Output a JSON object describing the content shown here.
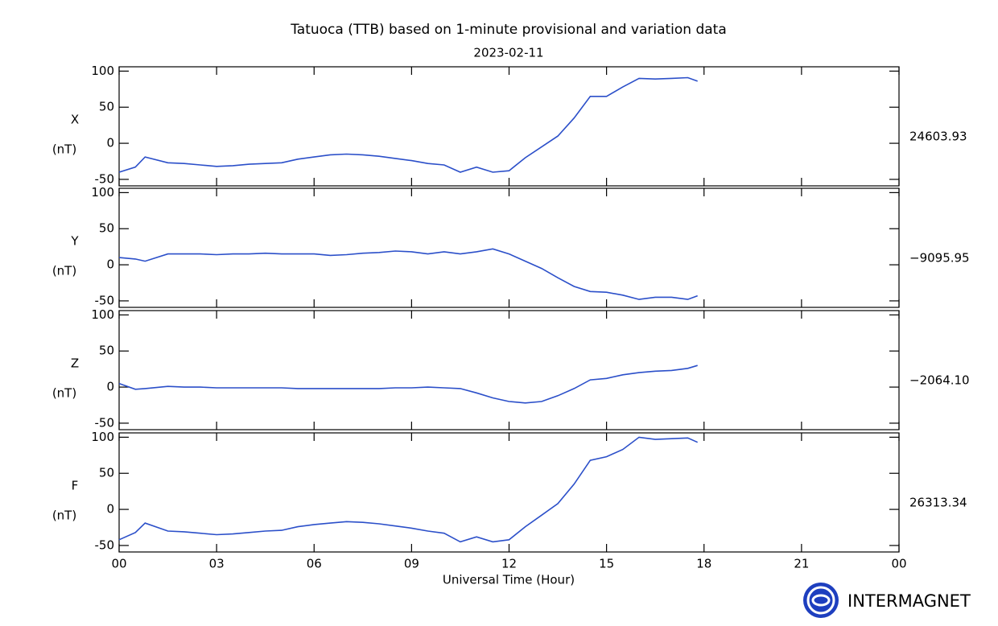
{
  "title": "Tatuoca (TTB) based on 1-minute provisional and variation data",
  "subtitle": "2023-02-11",
  "x_label": "Universal Time (Hour)",
  "logo": "INTERMAGNET",
  "chart_data": [
    {
      "type": "line",
      "ylabel": "X",
      "unit": "(nT)",
      "baseline": "24603.93",
      "color": "#2b4fc9",
      "xlim": [
        0,
        24
      ],
      "ylim": [
        -59,
        106
      ],
      "xticks": [
        {
          "value": 0,
          "label": "00"
        },
        {
          "value": 3,
          "label": "03"
        },
        {
          "value": 6,
          "label": "06"
        },
        {
          "value": 9,
          "label": "09"
        },
        12,
        15,
        18,
        21,
        {
          "value": 24,
          "label": "00"
        }
      ],
      "yticks": [
        -50,
        0,
        50,
        100
      ],
      "x": [
        0,
        0.5,
        0.8,
        1.5,
        2,
        2.5,
        3,
        3.5,
        4,
        4.5,
        5,
        5.5,
        6,
        6.5,
        7,
        7.5,
        8,
        8.5,
        9,
        9.5,
        10,
        10.5,
        11,
        11.5,
        12,
        12.5,
        13,
        13.5,
        14,
        14.5,
        15,
        15.5,
        16,
        16.5,
        17,
        17.5,
        17.8
      ],
      "values": [
        -40,
        -33,
        -19,
        -27,
        -28,
        -30,
        -32,
        -31,
        -29,
        -28,
        -27,
        -22,
        -19,
        -16,
        -15,
        -16,
        -18,
        -21,
        -24,
        -28,
        -30,
        -40,
        -33,
        -40,
        -38,
        -20,
        -5,
        10,
        35,
        65,
        65,
        78,
        90,
        89,
        90,
        91,
        86
      ]
    },
    {
      "type": "line",
      "ylabel": "Y",
      "unit": "(nT)",
      "baseline": "−9095.95",
      "color": "#2b4fc9",
      "xlim": [
        0,
        24
      ],
      "ylim": [
        -59,
        106
      ],
      "xticks": [
        {
          "value": 0,
          "label": "00"
        },
        {
          "value": 3,
          "label": "03"
        },
        {
          "value": 6,
          "label": "06"
        },
        {
          "value": 9,
          "label": "09"
        },
        12,
        15,
        18,
        21,
        {
          "value": 24,
          "label": "00"
        }
      ],
      "yticks": [
        -50,
        0,
        50,
        100
      ],
      "x": [
        0,
        0.5,
        0.8,
        1.5,
        2,
        2.5,
        3,
        3.5,
        4,
        4.5,
        5,
        5.5,
        6,
        6.5,
        7,
        7.5,
        8,
        8.5,
        9,
        9.5,
        10,
        10.5,
        11,
        11.5,
        12,
        12.5,
        13,
        13.5,
        14,
        14.5,
        15,
        15.5,
        16,
        16.5,
        17,
        17.5,
        17.8
      ],
      "values": [
        10,
        8,
        5,
        15,
        15,
        15,
        14,
        15,
        15,
        16,
        15,
        15,
        15,
        13,
        14,
        16,
        17,
        19,
        18,
        15,
        18,
        15,
        18,
        22,
        15,
        5,
        -5,
        -18,
        -30,
        -37,
        -38,
        -42,
        -48,
        -45,
        -45,
        -48,
        -43
      ]
    },
    {
      "type": "line",
      "ylabel": "Z",
      "unit": "(nT)",
      "baseline": "−2064.10",
      "color": "#2b4fc9",
      "xlim": [
        0,
        24
      ],
      "ylim": [
        -59,
        106
      ],
      "xticks": [
        {
          "value": 0,
          "label": "00"
        },
        {
          "value": 3,
          "label": "03"
        },
        {
          "value": 6,
          "label": "06"
        },
        {
          "value": 9,
          "label": "09"
        },
        12,
        15,
        18,
        21,
        {
          "value": 24,
          "label": "00"
        }
      ],
      "yticks": [
        -50,
        0,
        50,
        100
      ],
      "x": [
        0,
        0.5,
        0.8,
        1.5,
        2,
        2.5,
        3,
        3.5,
        4,
        4.5,
        5,
        5.5,
        6,
        6.5,
        7,
        7.5,
        8,
        8.5,
        9,
        9.5,
        10,
        10.5,
        11,
        11.5,
        12,
        12.5,
        13,
        13.5,
        14,
        14.5,
        15,
        15.5,
        16,
        16.5,
        17,
        17.5,
        17.8
      ],
      "values": [
        5,
        -3,
        -2,
        1,
        0,
        0,
        -1,
        -1,
        -1,
        -1,
        -1,
        -2,
        -2,
        -2,
        -2,
        -2,
        -2,
        -1,
        -1,
        0,
        -1,
        -2,
        -8,
        -15,
        -20,
        -22,
        -20,
        -12,
        -2,
        10,
        12,
        17,
        20,
        22,
        23,
        26,
        30
      ]
    },
    {
      "type": "line",
      "ylabel": "F",
      "unit": "(nT)",
      "baseline": "26313.34",
      "color": "#2b4fc9",
      "xlim": [
        0,
        24
      ],
      "ylim": [
        -59,
        106
      ],
      "xticks": [
        {
          "value": 0,
          "label": "00"
        },
        {
          "value": 3,
          "label": "03"
        },
        {
          "value": 6,
          "label": "06"
        },
        {
          "value": 9,
          "label": "09"
        },
        12,
        15,
        18,
        21,
        {
          "value": 24,
          "label": "00"
        }
      ],
      "yticks": [
        -50,
        0,
        50,
        100
      ],
      "x": [
        0,
        0.5,
        0.8,
        1.5,
        2,
        2.5,
        3,
        3.5,
        4,
        4.5,
        5,
        5.5,
        6,
        6.5,
        7,
        7.5,
        8,
        8.5,
        9,
        9.5,
        10,
        10.5,
        11,
        11.5,
        12,
        12.5,
        13,
        13.5,
        14,
        14.5,
        15,
        15.5,
        16,
        16.5,
        17,
        17.5,
        17.8
      ],
      "values": [
        -42,
        -32,
        -19,
        -30,
        -31,
        -33,
        -35,
        -34,
        -32,
        -30,
        -29,
        -24,
        -21,
        -19,
        -17,
        -18,
        -20,
        -23,
        -26,
        -30,
        -33,
        -45,
        -38,
        -45,
        -42,
        -24,
        -8,
        8,
        35,
        68,
        73,
        83,
        100,
        97,
        98,
        99,
        93
      ]
    }
  ]
}
